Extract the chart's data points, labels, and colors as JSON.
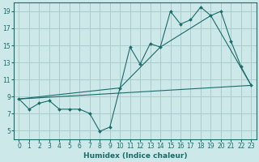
{
  "title": "",
  "xlabel": "Humidex (Indice chaleur)",
  "ylabel": "",
  "bg_color": "#cce8e8",
  "grid_color": "#aacccc",
  "line_color": "#1a6b6b",
  "xlim": [
    -0.5,
    23.5
  ],
  "ylim": [
    4,
    20
  ],
  "xticks": [
    0,
    1,
    2,
    3,
    4,
    5,
    6,
    7,
    8,
    9,
    10,
    11,
    12,
    13,
    14,
    15,
    16,
    17,
    18,
    19,
    20,
    21,
    22,
    23
  ],
  "yticks": [
    5,
    7,
    9,
    11,
    13,
    15,
    17,
    19
  ],
  "series1_x": [
    0,
    1,
    2,
    3,
    4,
    5,
    6,
    7,
    8,
    9,
    10,
    11,
    12,
    13,
    14,
    15,
    16,
    17,
    18,
    19,
    20,
    21,
    22,
    23
  ],
  "series1_y": [
    8.7,
    7.5,
    8.2,
    8.5,
    7.5,
    7.5,
    7.5,
    7.0,
    4.9,
    5.4,
    10.0,
    14.8,
    12.8,
    15.2,
    14.8,
    19.0,
    17.5,
    18.0,
    19.5,
    18.5,
    19.0,
    15.5,
    12.5,
    10.3
  ],
  "series2_x": [
    0,
    10,
    14,
    19,
    23
  ],
  "series2_y": [
    8.7,
    10.0,
    14.8,
    18.5,
    10.3
  ],
  "series3_x": [
    0,
    23
  ],
  "series3_y": [
    8.7,
    10.3
  ],
  "xlabel_fontsize": 6.5,
  "tick_fontsize": 5.5,
  "linewidth": 0.8,
  "markersize": 2.0
}
